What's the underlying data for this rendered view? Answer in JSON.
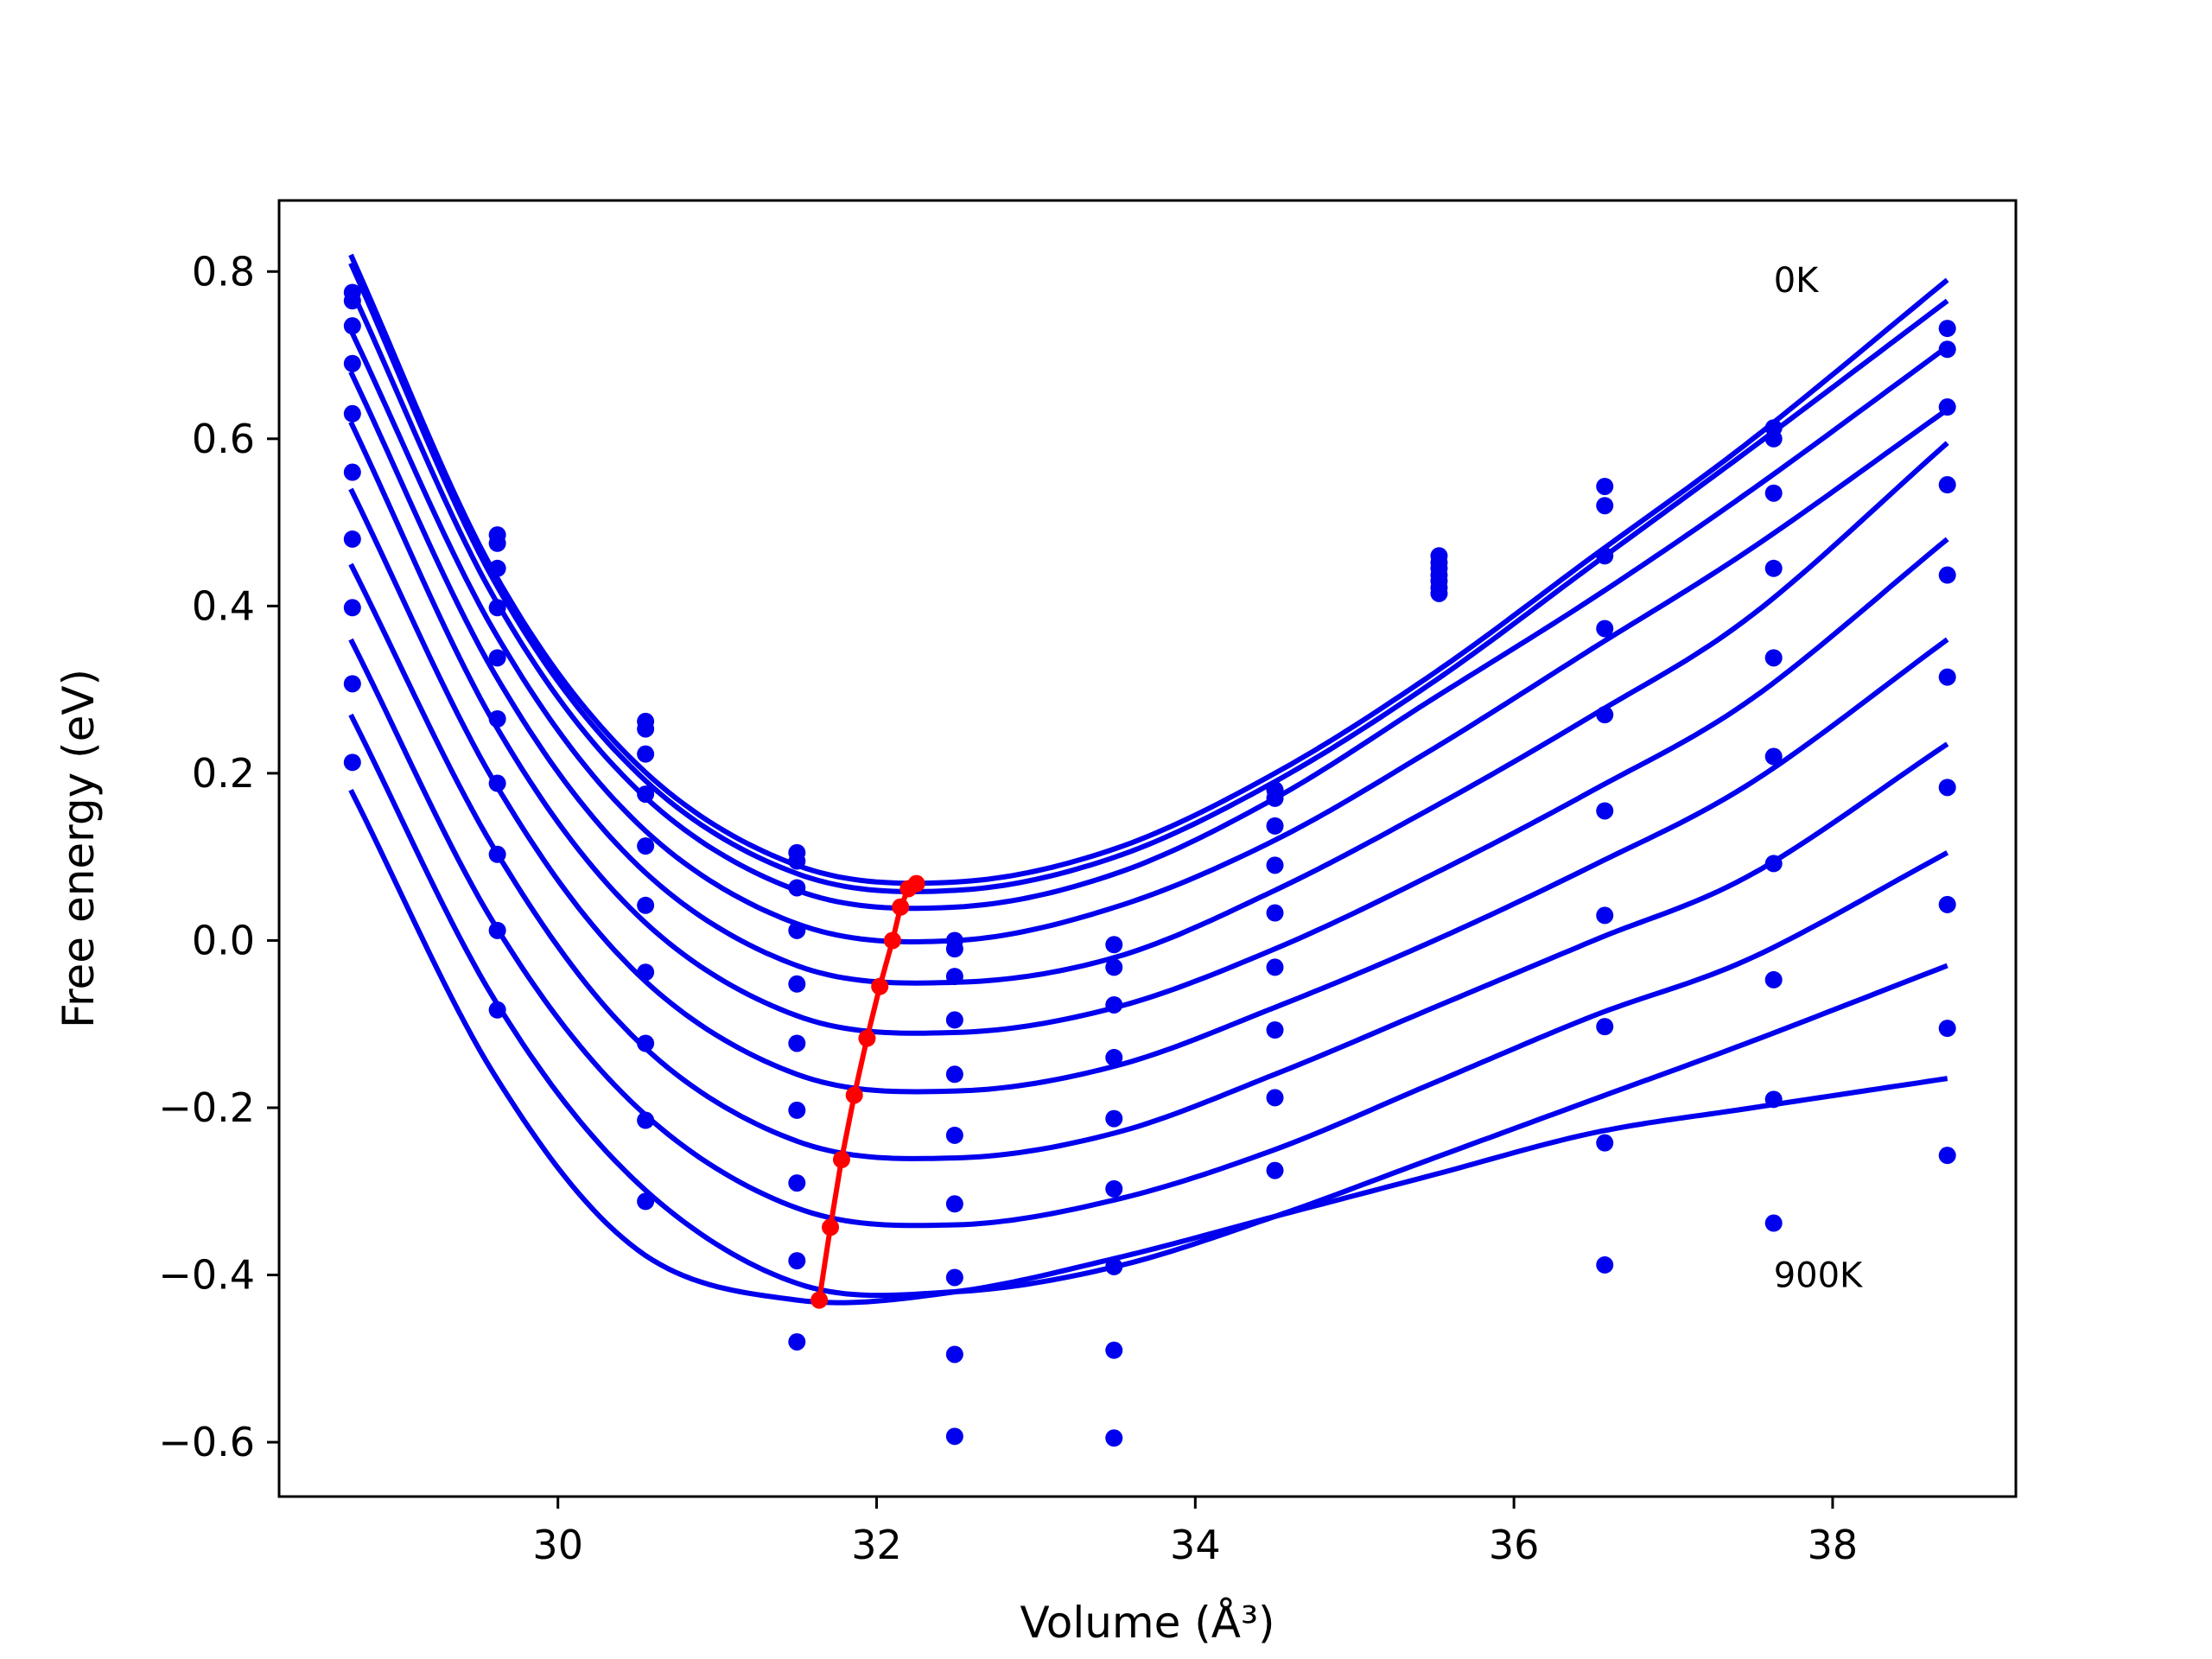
{
  "chart_data": {
    "type": "line",
    "xlabel": "Volume (Å³)",
    "ylabel": "Free energy (eV)",
    "xlim": [
      28.25,
      39.15
    ],
    "ylim": [
      -0.665,
      0.885
    ],
    "xticks": [
      30,
      32,
      34,
      36,
      38
    ],
    "yticks": [
      0.8,
      0.6,
      0.4,
      0.2,
      0.0,
      -0.2,
      -0.4,
      -0.6
    ],
    "xtick_labels": [
      "30",
      "32",
      "34",
      "36",
      "38"
    ],
    "ytick_labels": [
      "0.8",
      "0.6",
      "0.4",
      "0.2",
      "0.0",
      "−0.2",
      "−0.4",
      "−0.6"
    ],
    "grid": false,
    "annotations": [
      {
        "text": "0K",
        "x": 37.63,
        "y": 0.79
      },
      {
        "text": "900K",
        "x": 37.63,
        "y": -0.4
      }
    ],
    "curve_x_range": [
      28.7,
      38.72
    ],
    "curve_color": "#0000ee",
    "point_color": "#0000ee",
    "minimum_color": "#ff0000",
    "fitted_curves": [
      {
        "x": [
          28.7,
          29.6,
          30.5,
          31.5,
          32.5,
          33.5,
          34.5,
          35.5,
          36.5,
          37.5,
          38.72
        ],
        "y": [
          0.82,
          0.44,
          0.21,
          0.09,
          0.07,
          0.11,
          0.2,
          0.32,
          0.46,
          0.6,
          0.79
        ]
      },
      {
        "x": [
          28.7,
          29.6,
          30.5,
          31.5,
          32.5,
          33.5,
          34.5,
          35.5,
          36.5,
          37.5,
          38.72
        ],
        "y": [
          0.81,
          0.43,
          0.2,
          0.08,
          0.06,
          0.1,
          0.19,
          0.31,
          0.45,
          0.59,
          0.765
        ]
      },
      {
        "x": [
          28.7,
          29.6,
          30.5,
          31.5,
          32.5,
          33.5,
          34.5,
          35.5,
          36.5,
          37.5,
          38.72
        ],
        "y": [
          0.78,
          0.41,
          0.18,
          0.06,
          0.04,
          0.08,
          0.17,
          0.29,
          0.41,
          0.54,
          0.71
        ]
      },
      {
        "x": [
          28.7,
          29.6,
          30.5,
          31.5,
          32.5,
          33.5,
          34.5,
          35.5,
          36.5,
          37.5,
          38.72
        ],
        "y": [
          0.73,
          0.37,
          0.14,
          0.02,
          0.0,
          0.04,
          0.12,
          0.23,
          0.35,
          0.47,
          0.635
        ]
      },
      {
        "x": [
          28.7,
          29.6,
          30.5,
          31.5,
          32.5,
          33.5,
          34.5,
          35.5,
          36.5,
          37.5,
          38.72
        ],
        "y": [
          0.68,
          0.32,
          0.09,
          -0.03,
          -0.05,
          -0.02,
          0.06,
          0.16,
          0.27,
          0.39,
          0.595
        ]
      },
      {
        "x": [
          28.7,
          29.6,
          30.5,
          31.5,
          32.5,
          33.5,
          34.5,
          35.5,
          36.5,
          37.5,
          38.72
        ],
        "y": [
          0.62,
          0.26,
          0.03,
          -0.09,
          -0.11,
          -0.08,
          -0.01,
          0.08,
          0.18,
          0.29,
          0.48
        ]
      },
      {
        "x": [
          28.7,
          29.6,
          30.5,
          31.5,
          32.5,
          33.5,
          34.5,
          35.5,
          36.5,
          37.5,
          38.72
        ],
        "y": [
          0.54,
          0.19,
          -0.04,
          -0.16,
          -0.18,
          -0.15,
          -0.08,
          0.0,
          0.09,
          0.19,
          0.36
        ]
      },
      {
        "x": [
          28.7,
          29.6,
          30.5,
          31.5,
          32.5,
          33.5,
          34.5,
          35.5,
          36.5,
          37.5,
          38.72
        ],
        "y": [
          0.45,
          0.11,
          -0.12,
          -0.24,
          -0.26,
          -0.23,
          -0.16,
          -0.08,
          0.0,
          0.08,
          0.235
        ]
      },
      {
        "x": [
          28.7,
          29.6,
          30.5,
          31.5,
          32.5,
          33.5,
          34.5,
          35.5,
          36.5,
          37.5,
          38.72
        ],
        "y": [
          0.36,
          0.02,
          -0.2,
          -0.32,
          -0.34,
          -0.31,
          -0.25,
          -0.17,
          -0.09,
          -0.02,
          0.105
        ]
      },
      {
        "x": [
          28.7,
          29.6,
          30.5,
          31.5,
          32.5,
          33.5,
          34.5,
          35.5,
          36.5,
          37.5,
          38.72
        ],
        "y": [
          0.27,
          -0.07,
          -0.29,
          -0.41,
          -0.42,
          -0.39,
          -0.33,
          -0.26,
          -0.19,
          -0.12,
          -0.03
        ]
      },
      {
        "x": [
          28.7,
          29.6,
          30.5,
          31.5,
          32.5,
          33.5,
          34.5,
          35.5,
          36.5,
          37.5,
          38.72
        ],
        "y": [
          0.18,
          -0.16,
          -0.37,
          -0.43,
          -0.42,
          -0.38,
          -0.33,
          -0.28,
          -0.23,
          -0.2,
          -0.165
        ]
      }
    ],
    "data_points": [
      {
        "x": 28.71,
        "y": [
          0.775,
          0.765,
          0.735,
          0.69,
          0.63,
          0.56,
          0.48,
          0.398,
          0.307,
          0.213
        ]
      },
      {
        "x": 29.62,
        "y": [
          0.485,
          0.475,
          0.445,
          0.398,
          0.338,
          0.265,
          0.188,
          0.103,
          0.012,
          -0.083
        ]
      },
      {
        "x": 30.55,
        "y": [
          0.262,
          0.253,
          0.223,
          0.175,
          0.113,
          0.042,
          -0.038,
          -0.123,
          -0.215,
          -0.312
        ]
      },
      {
        "x": 31.5,
        "y": [
          0.105,
          0.095,
          0.063,
          0.012,
          -0.052,
          -0.123,
          -0.203,
          -0.29,
          -0.383,
          -0.48
        ]
      },
      {
        "x": 32.49,
        "y": [
          0.0,
          -0.01,
          -0.043,
          -0.095,
          -0.16,
          -0.233,
          -0.315,
          -0.403,
          -0.495,
          -0.593
        ]
      },
      {
        "x": 33.49,
        "y": [
          -0.005,
          -0.032,
          -0.077,
          -0.14,
          -0.213,
          -0.297,
          -0.39,
          -0.49,
          -0.595
        ]
      },
      {
        "x": 34.5,
        "y": [
          0.18,
          0.17,
          0.137,
          0.09,
          0.033,
          -0.032,
          -0.107,
          -0.188,
          -0.275
        ]
      },
      {
        "x": 35.53,
        "y": [
          0.46,
          0.452,
          0.445,
          0.437,
          0.43,
          0.422,
          0.415
        ]
      },
      {
        "x": 36.57,
        "y": [
          0.543,
          0.52,
          0.46,
          0.373,
          0.27,
          0.155,
          0.03,
          -0.103,
          -0.242,
          -0.388
        ]
      },
      {
        "x": 37.63,
        "y": [
          0.613,
          0.6,
          0.535,
          0.445,
          0.338,
          0.22,
          0.092,
          -0.047,
          -0.19,
          -0.338
        ]
      },
      {
        "x": 38.72,
        "y": [
          0.732,
          0.707,
          0.638,
          0.545,
          0.437,
          0.315,
          0.183,
          0.043,
          -0.105,
          -0.257
        ]
      }
    ],
    "minimum_curve": {
      "x": [
        32.25,
        32.2,
        32.15,
        32.1,
        32.02,
        31.94,
        31.86,
        31.78,
        31.71,
        31.64
      ],
      "y": [
        0.068,
        0.062,
        0.04,
        0.0,
        -0.055,
        -0.117,
        -0.185,
        -0.262,
        -0.343,
        -0.43
      ]
    }
  }
}
